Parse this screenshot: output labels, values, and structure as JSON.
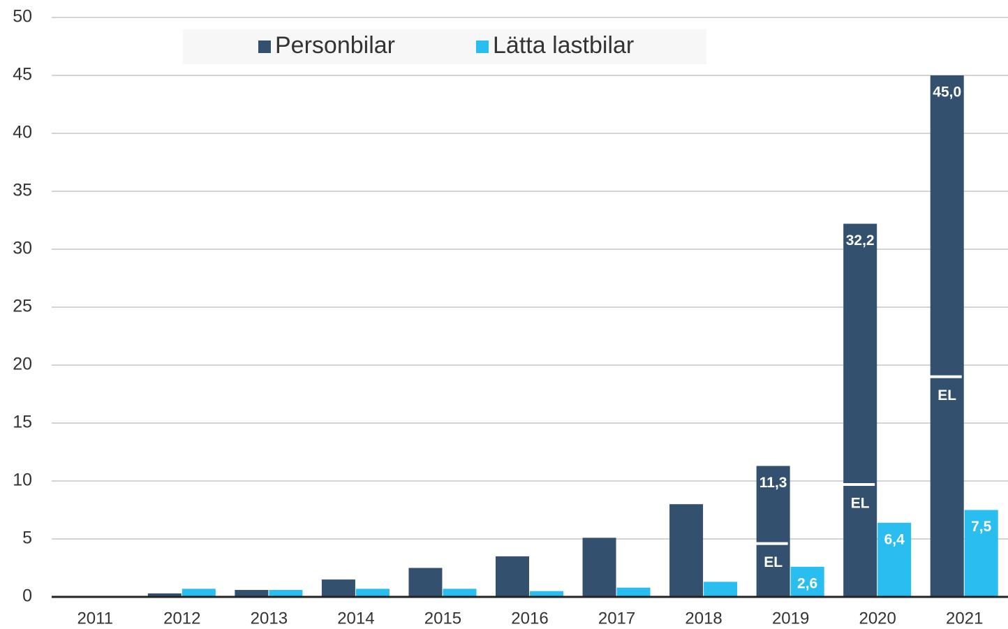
{
  "chart_data": {
    "type": "bar",
    "categories": [
      "2011",
      "2012",
      "2013",
      "2014",
      "2015",
      "2016",
      "2017",
      "2018",
      "2019",
      "2020",
      "2021"
    ],
    "series": [
      {
        "name": "Personbilar",
        "color": "#34506f",
        "values": [
          0.05,
          0.3,
          0.6,
          1.5,
          2.5,
          3.5,
          5.1,
          8.0,
          11.3,
          32.2,
          45.0
        ],
        "value_labels": [
          null,
          null,
          null,
          null,
          null,
          null,
          null,
          null,
          "11,3",
          "32,2",
          "45,0"
        ]
      },
      {
        "name": "Lätta lastbilar",
        "color": "#29bdf0",
        "values": [
          0,
          0.7,
          0.6,
          0.7,
          0.7,
          0.5,
          0.8,
          1.3,
          2.6,
          6.4,
          7.5
        ],
        "value_labels": [
          null,
          null,
          null,
          null,
          null,
          null,
          null,
          null,
          "2,6",
          "6,4",
          "7,5"
        ]
      }
    ],
    "annotations": [
      {
        "text": "EL",
        "category": "2019",
        "value": 4.6
      },
      {
        "text": "EL",
        "category": "2020",
        "value": 9.7
      },
      {
        "text": "EL",
        "category": "2021",
        "value": 19.0
      }
    ],
    "ylim": [
      0,
      50
    ],
    "yticks": [
      0,
      5,
      10,
      15,
      20,
      25,
      30,
      35,
      40,
      45,
      50
    ],
    "grid": true,
    "legend": "top"
  }
}
